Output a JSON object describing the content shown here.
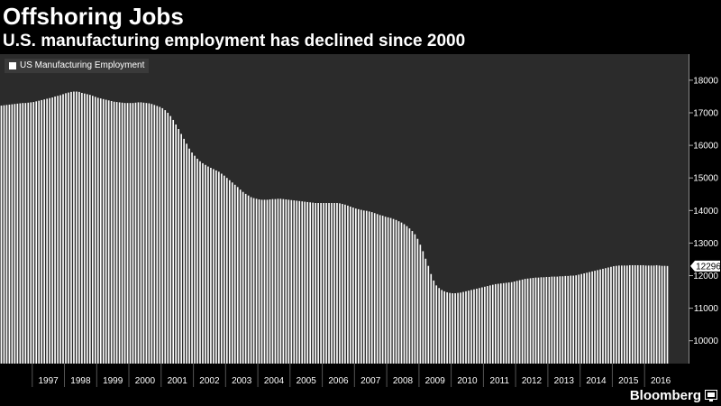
{
  "header": {
    "title": "Offshoring Jobs",
    "subtitle": "U.S. manufacturing employment has declined since 2000"
  },
  "footer": {
    "brand": "Bloomberg",
    "logo_icon": "bloomberg-terminal-icon"
  },
  "colors": {
    "background": "#000000",
    "plot_background": "#2b2b2b",
    "bar": "#ffffff",
    "text": "#ffffff"
  },
  "chart_data": {
    "type": "bar",
    "title": "Offshoring Jobs",
    "subtitle": "U.S. manufacturing employment has declined since 2000",
    "xlabel": "",
    "ylabel": "",
    "frequency": "monthly",
    "legend": {
      "position": "top-left",
      "entries": [
        "US Manufacturing Employment"
      ]
    },
    "last_value_label": "12296",
    "ylim": [
      9300,
      18800
    ],
    "y_ticks": [
      10000,
      11000,
      12000,
      13000,
      14000,
      15000,
      16000,
      17000,
      18000
    ],
    "x_tick_labels": [
      "1997",
      "1998",
      "1999",
      "2000",
      "2001",
      "2002",
      "2003",
      "2004",
      "2005",
      "2006",
      "2007",
      "2008",
      "2009",
      "2010",
      "2011",
      "2012",
      "2013",
      "2014",
      "2015",
      "2016"
    ],
    "x_range": [
      "1996-01",
      "2016-09"
    ],
    "grid": false,
    "series": [
      {
        "name": "US Manufacturing Employment",
        "x": [
          "1996-01",
          "1996-02",
          "1996-03",
          "1996-04",
          "1996-05",
          "1996-06",
          "1996-07",
          "1996-08",
          "1996-09",
          "1996-10",
          "1996-11",
          "1996-12",
          "1997-01",
          "1997-02",
          "1997-03",
          "1997-04",
          "1997-05",
          "1997-06",
          "1997-07",
          "1997-08",
          "1997-09",
          "1997-10",
          "1997-11",
          "1997-12",
          "1998-01",
          "1998-02",
          "1998-03",
          "1998-04",
          "1998-05",
          "1998-06",
          "1998-07",
          "1998-08",
          "1998-09",
          "1998-10",
          "1998-11",
          "1998-12",
          "1999-01",
          "1999-02",
          "1999-03",
          "1999-04",
          "1999-05",
          "1999-06",
          "1999-07",
          "1999-08",
          "1999-09",
          "1999-10",
          "1999-11",
          "1999-12",
          "2000-01",
          "2000-02",
          "2000-03",
          "2000-04",
          "2000-05",
          "2000-06",
          "2000-07",
          "2000-08",
          "2000-09",
          "2000-10",
          "2000-11",
          "2000-12",
          "2001-01",
          "2001-02",
          "2001-03",
          "2001-04",
          "2001-05",
          "2001-06",
          "2001-07",
          "2001-08",
          "2001-09",
          "2001-10",
          "2001-11",
          "2001-12",
          "2002-01",
          "2002-02",
          "2002-03",
          "2002-04",
          "2002-05",
          "2002-06",
          "2002-07",
          "2002-08",
          "2002-09",
          "2002-10",
          "2002-11",
          "2002-12",
          "2003-01",
          "2003-02",
          "2003-03",
          "2003-04",
          "2003-05",
          "2003-06",
          "2003-07",
          "2003-08",
          "2003-09",
          "2003-10",
          "2003-11",
          "2003-12",
          "2004-01",
          "2004-02",
          "2004-03",
          "2004-04",
          "2004-05",
          "2004-06",
          "2004-07",
          "2004-08",
          "2004-09",
          "2004-10",
          "2004-11",
          "2004-12",
          "2005-01",
          "2005-02",
          "2005-03",
          "2005-04",
          "2005-05",
          "2005-06",
          "2005-07",
          "2005-08",
          "2005-09",
          "2005-10",
          "2005-11",
          "2005-12",
          "2006-01",
          "2006-02",
          "2006-03",
          "2006-04",
          "2006-05",
          "2006-06",
          "2006-07",
          "2006-08",
          "2006-09",
          "2006-10",
          "2006-11",
          "2006-12",
          "2007-01",
          "2007-02",
          "2007-03",
          "2007-04",
          "2007-05",
          "2007-06",
          "2007-07",
          "2007-08",
          "2007-09",
          "2007-10",
          "2007-11",
          "2007-12",
          "2008-01",
          "2008-02",
          "2008-03",
          "2008-04",
          "2008-05",
          "2008-06",
          "2008-07",
          "2008-08",
          "2008-09",
          "2008-10",
          "2008-11",
          "2008-12",
          "2009-01",
          "2009-02",
          "2009-03",
          "2009-04",
          "2009-05",
          "2009-06",
          "2009-07",
          "2009-08",
          "2009-09",
          "2009-10",
          "2009-11",
          "2009-12",
          "2010-01",
          "2010-02",
          "2010-03",
          "2010-04",
          "2010-05",
          "2010-06",
          "2010-07",
          "2010-08",
          "2010-09",
          "2010-10",
          "2010-11",
          "2010-12",
          "2011-01",
          "2011-02",
          "2011-03",
          "2011-04",
          "2011-05",
          "2011-06",
          "2011-07",
          "2011-08",
          "2011-09",
          "2011-10",
          "2011-11",
          "2011-12",
          "2012-01",
          "2012-02",
          "2012-03",
          "2012-04",
          "2012-05",
          "2012-06",
          "2012-07",
          "2012-08",
          "2012-09",
          "2012-10",
          "2012-11",
          "2012-12",
          "2013-01",
          "2013-02",
          "2013-03",
          "2013-04",
          "2013-05",
          "2013-06",
          "2013-07",
          "2013-08",
          "2013-09",
          "2013-10",
          "2013-11",
          "2013-12",
          "2014-01",
          "2014-02",
          "2014-03",
          "2014-04",
          "2014-05",
          "2014-06",
          "2014-07",
          "2014-08",
          "2014-09",
          "2014-10",
          "2014-11",
          "2014-12",
          "2015-01",
          "2015-02",
          "2015-03",
          "2015-04",
          "2015-05",
          "2015-06",
          "2015-07",
          "2015-08",
          "2015-09",
          "2015-10",
          "2015-11",
          "2015-12",
          "2016-01",
          "2016-02",
          "2016-03",
          "2016-04",
          "2016-05",
          "2016-06",
          "2016-07",
          "2016-08",
          "2016-09"
        ],
        "values": [
          17220,
          17230,
          17240,
          17250,
          17260,
          17270,
          17280,
          17290,
          17300,
          17300,
          17310,
          17320,
          17330,
          17350,
          17370,
          17390,
          17410,
          17430,
          17450,
          17470,
          17500,
          17520,
          17540,
          17570,
          17600,
          17620,
          17640,
          17650,
          17650,
          17640,
          17610,
          17590,
          17570,
          17550,
          17520,
          17490,
          17460,
          17440,
          17420,
          17400,
          17380,
          17360,
          17340,
          17330,
          17320,
          17310,
          17300,
          17300,
          17300,
          17300,
          17310,
          17320,
          17320,
          17310,
          17300,
          17290,
          17270,
          17240,
          17210,
          17180,
          17140,
          17080,
          17000,
          16900,
          16780,
          16640,
          16500,
          16350,
          16200,
          16050,
          15900,
          15780,
          15680,
          15590,
          15510,
          15450,
          15400,
          15350,
          15310,
          15270,
          15230,
          15190,
          15130,
          15070,
          15000,
          14930,
          14860,
          14790,
          14720,
          14640,
          14570,
          14510,
          14460,
          14410,
          14380,
          14360,
          14340,
          14330,
          14330,
          14330,
          14340,
          14350,
          14350,
          14360,
          14360,
          14350,
          14340,
          14330,
          14320,
          14310,
          14300,
          14290,
          14280,
          14270,
          14260,
          14250,
          14240,
          14230,
          14230,
          14230,
          14230,
          14230,
          14230,
          14230,
          14230,
          14230,
          14220,
          14200,
          14180,
          14150,
          14120,
          14090,
          14060,
          14040,
          14020,
          14000,
          13990,
          13970,
          13950,
          13920,
          13890,
          13860,
          13840,
          13810,
          13790,
          13770,
          13740,
          13710,
          13670,
          13630,
          13580,
          13520,
          13450,
          13370,
          13270,
          13130,
          12950,
          12750,
          12520,
          12300,
          12050,
          11850,
          11700,
          11620,
          11560,
          11520,
          11490,
          11470,
          11460,
          11460,
          11470,
          11480,
          11500,
          11520,
          11540,
          11560,
          11580,
          11600,
          11620,
          11640,
          11660,
          11680,
          11700,
          11720,
          11740,
          11750,
          11760,
          11770,
          11780,
          11790,
          11800,
          11820,
          11840,
          11860,
          11880,
          11900,
          11910,
          11920,
          11930,
          11940,
          11940,
          11950,
          11950,
          11960,
          11960,
          11970,
          11970,
          11970,
          11980,
          11980,
          11990,
          11990,
          12000,
          12000,
          12010,
          12030,
          12050,
          12070,
          12090,
          12110,
          12130,
          12150,
          12170,
          12190,
          12210,
          12230,
          12250,
          12270,
          12290,
          12300,
          12310,
          12310,
          12310,
          12310,
          12320,
          12320,
          12320,
          12320,
          12320,
          12320,
          12310,
          12310,
          12310,
          12310,
          12320,
          12310,
          12300,
          12300,
          12296
        ]
      }
    ]
  }
}
